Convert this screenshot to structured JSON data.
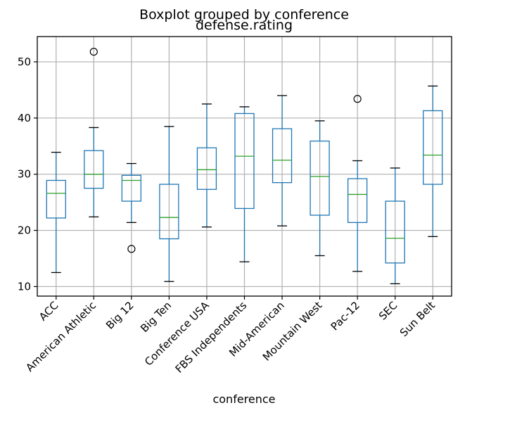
{
  "chart_data": {
    "type": "box",
    "suptitle": "Boxplot grouped by conference",
    "title": "defense.rating",
    "xlabel": "conference",
    "ylabel": "",
    "ylim": [
      8.3,
      54.5
    ],
    "yticks": [
      10,
      20,
      30,
      40,
      50
    ],
    "grid": true,
    "colors": {
      "box": "#1f77b4",
      "median": "#2ca02c",
      "whisker_cap": "#000000",
      "grid": "#b0b0b0"
    },
    "categories": [
      "ACC",
      "American Athletic",
      "Big 12",
      "Big Ten",
      "Conference USA",
      "FBS Independents",
      "Mid-American",
      "Mountain West",
      "Pac-12",
      "SEC",
      "Sun Belt"
    ],
    "boxes": [
      {
        "category": "ACC",
        "whislo": 12.5,
        "q1": 22.2,
        "med": 26.6,
        "q3": 28.9,
        "whishi": 33.9,
        "fliers": []
      },
      {
        "category": "American Athletic",
        "whislo": 22.4,
        "q1": 27.5,
        "med": 30.0,
        "q3": 34.2,
        "whishi": 38.3,
        "fliers": [
          51.8
        ]
      },
      {
        "category": "Big 12",
        "whislo": 21.4,
        "q1": 25.2,
        "med": 28.9,
        "q3": 29.8,
        "whishi": 31.9,
        "fliers": [
          16.7
        ]
      },
      {
        "category": "Big Ten",
        "whislo": 10.9,
        "q1": 18.5,
        "med": 22.3,
        "q3": 28.2,
        "whishi": 38.5,
        "fliers": []
      },
      {
        "category": "Conference USA",
        "whislo": 20.6,
        "q1": 27.3,
        "med": 30.8,
        "q3": 34.7,
        "whishi": 42.5,
        "fliers": []
      },
      {
        "category": "FBS Independents",
        "whislo": 14.4,
        "q1": 23.9,
        "med": 33.2,
        "q3": 40.8,
        "whishi": 42.0,
        "fliers": []
      },
      {
        "category": "Mid-American",
        "whislo": 20.8,
        "q1": 28.5,
        "med": 32.5,
        "q3": 38.1,
        "whishi": 44.0,
        "fliers": []
      },
      {
        "category": "Mountain West",
        "whislo": 15.5,
        "q1": 22.7,
        "med": 29.6,
        "q3": 35.9,
        "whishi": 39.5,
        "fliers": []
      },
      {
        "category": "Pac-12",
        "whislo": 12.7,
        "q1": 21.4,
        "med": 26.4,
        "q3": 29.2,
        "whishi": 32.4,
        "fliers": [
          43.4
        ]
      },
      {
        "category": "SEC",
        "whislo": 10.5,
        "q1": 14.2,
        "med": 18.6,
        "q3": 25.2,
        "whishi": 31.1,
        "fliers": []
      },
      {
        "category": "Sun Belt",
        "whislo": 18.9,
        "q1": 28.2,
        "med": 33.4,
        "q3": 41.3,
        "whishi": 45.7,
        "fliers": []
      }
    ]
  }
}
